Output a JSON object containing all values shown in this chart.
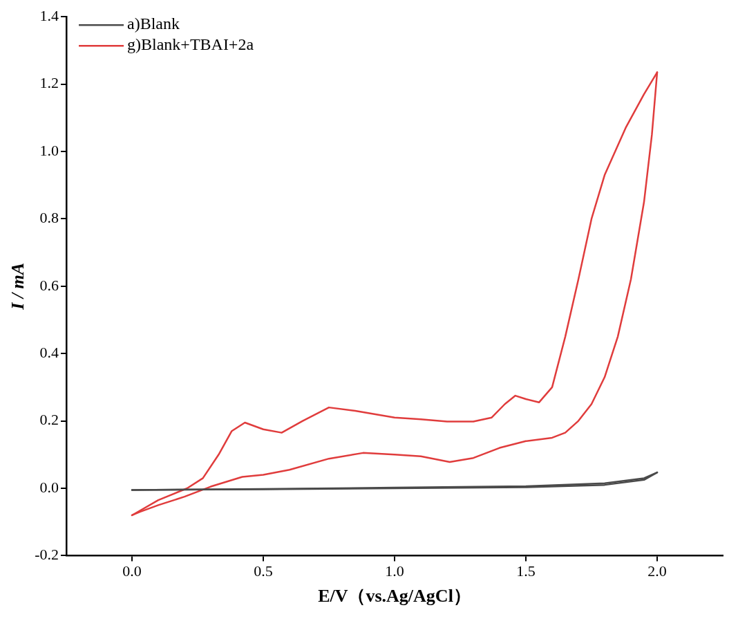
{
  "chart_data": {
    "type": "line",
    "xlabel": "E/V（vs.Ag/AgCl）",
    "ylabel": "I / mA",
    "xlim": [
      -0.25,
      2.25
    ],
    "ylim": [
      -0.2,
      1.4
    ],
    "xticks": [
      {
        "value": 0,
        "label": "0.0"
      },
      {
        "value": 0.5,
        "label": "0.5"
      },
      {
        "value": 1,
        "label": "1.0"
      },
      {
        "value": 1.5,
        "label": "1.5"
      },
      {
        "value": 2,
        "label": "2.0"
      }
    ],
    "yticks": [
      {
        "value": -0.2,
        "label": "-0.2"
      },
      {
        "value": 0,
        "label": "0.0"
      },
      {
        "value": 0.2,
        "label": "0.2"
      },
      {
        "value": 0.4,
        "label": "0.4"
      },
      {
        "value": 0.6,
        "label": "0.6"
      },
      {
        "value": 0.8,
        "label": "0.8"
      },
      {
        "value": 1,
        "label": "1.0"
      },
      {
        "value": 1.2,
        "label": "1.2"
      },
      {
        "value": 1.4,
        "label": "1.4"
      }
    ],
    "grid": false,
    "legend": "top left",
    "marker": "none",
    "line_style": "solid",
    "series": [
      {
        "name": "a)Blank",
        "color": "#4a4a4a",
        "x": [
          0,
          0.5,
          1.0,
          1.5,
          1.8,
          1.95,
          2.0
        ],
        "values": [
          -0.005,
          -0.002,
          0.002,
          0.006,
          0.015,
          0.03,
          0.047
        ]
      },
      {
        "color": "#4a4a4a",
        "x": [
          0,
          0.5,
          1.0,
          1.5,
          1.8,
          1.95,
          2.0
        ],
        "values": [
          -0.005,
          -0.003,
          0.0,
          0.003,
          0.01,
          0.025,
          0.047
        ]
      },
      {
        "name": "g)Blank+TBAI+2a",
        "color": "#e03c3c",
        "x": [
          0,
          0.1,
          0.21,
          0.27,
          0.33,
          0.38,
          0.43,
          0.5,
          0.57,
          0.65,
          0.75,
          0.85,
          1.0,
          1.1,
          1.2,
          1.3,
          1.37,
          1.42,
          1.46,
          1.5,
          1.55,
          1.6,
          1.65,
          1.7,
          1.75,
          1.8,
          1.88,
          1.95,
          2.0
        ],
        "values": [
          -0.08,
          -0.035,
          0.0,
          0.03,
          0.1,
          0.17,
          0.195,
          0.175,
          0.165,
          0.2,
          0.24,
          0.23,
          0.21,
          0.205,
          0.198,
          0.198,
          0.21,
          0.25,
          0.275,
          0.265,
          0.255,
          0.3,
          0.45,
          0.62,
          0.8,
          0.93,
          1.07,
          1.17,
          1.235
        ]
      },
      {
        "color": "#e03c3c",
        "x": [
          0,
          0.03,
          0.1,
          0.2,
          0.3,
          0.42,
          0.5,
          0.6,
          0.75,
          0.88,
          1.0,
          1.1,
          1.21,
          1.3,
          1.4,
          1.5,
          1.6,
          1.65,
          1.7,
          1.75,
          1.8,
          1.85,
          1.9,
          1.95,
          1.98,
          2.0
        ],
        "values": [
          -0.08,
          -0.07,
          -0.05,
          -0.025,
          0.005,
          0.034,
          0.04,
          0.055,
          0.088,
          0.105,
          0.1,
          0.095,
          0.078,
          0.09,
          0.12,
          0.14,
          0.15,
          0.165,
          0.2,
          0.25,
          0.33,
          0.45,
          0.62,
          0.85,
          1.05,
          1.235
        ]
      }
    ]
  }
}
